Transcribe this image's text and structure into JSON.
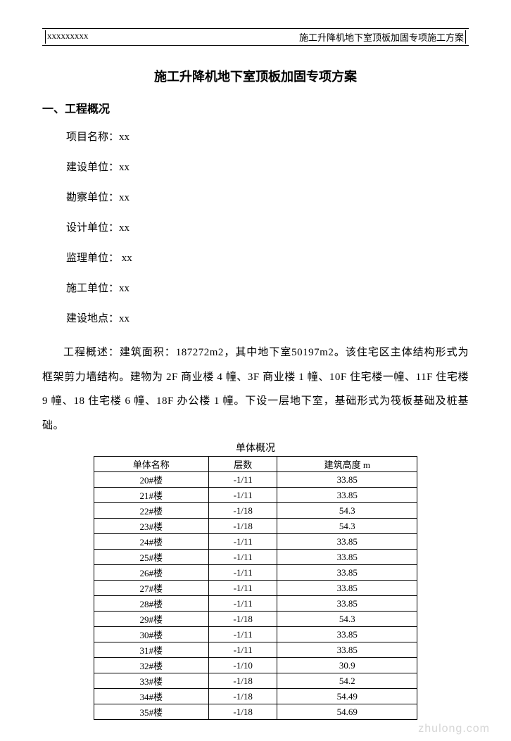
{
  "header": {
    "left": "xxxxxxxxx",
    "right": "施工升降机地下室顶板加固专项施工方案"
  },
  "title": "施工升降机地下室顶板加固专项方案",
  "section_heading": "一、工程概况",
  "info": {
    "project_name_label": "项目名称：xx",
    "construction_unit_label": "建设单位：xx",
    "survey_unit_label": "勘察单位：xx",
    "design_unit_label": "设计单位：xx",
    "supervision_unit_label": "监理单位： xx",
    "builder_unit_label": "施工单位：xx",
    "location_label": "建设地点：xx"
  },
  "description": "工程概述：建筑面积：187272m2，其中地下室50197m2。该住宅区主体结构形式为框架剪力墙结构。建物为 2F 商业楼 4 幢、3F 商业楼 1 幢、10F 住宅楼一幢、11F 住宅楼 9 幢、18 住宅楼 6 幢、18F 办公楼 1 幢。下设一层地下室，基础形式为筏板基础及桩基础。",
  "table": {
    "caption": "单体概况",
    "columns": [
      "单体名称",
      "层数",
      "建筑高度 m"
    ],
    "rows": [
      [
        "20#楼",
        "-1/11",
        "33.85"
      ],
      [
        "21#楼",
        "-1/11",
        "33.85"
      ],
      [
        "22#楼",
        "-1/18",
        "54.3"
      ],
      [
        "23#楼",
        "-1/18",
        "54.3"
      ],
      [
        "24#楼",
        "-1/11",
        "33.85"
      ],
      [
        "25#楼",
        "-1/11",
        "33.85"
      ],
      [
        "26#楼",
        "-1/11",
        "33.85"
      ],
      [
        "27#楼",
        "-1/11",
        "33.85"
      ],
      [
        "28#楼",
        "-1/11",
        "33.85"
      ],
      [
        "29#楼",
        "-1/18",
        "54.3"
      ],
      [
        "30#楼",
        "-1/11",
        "33.85"
      ],
      [
        "31#楼",
        "-1/11",
        "33.85"
      ],
      [
        "32#楼",
        "-1/10",
        "30.9"
      ],
      [
        "33#楼",
        "-1/18",
        "54.2"
      ],
      [
        "34#楼",
        "-1/18",
        "54.49"
      ],
      [
        "35#楼",
        "-1/18",
        "54.69"
      ]
    ]
  },
  "watermark": "zhulong.com"
}
